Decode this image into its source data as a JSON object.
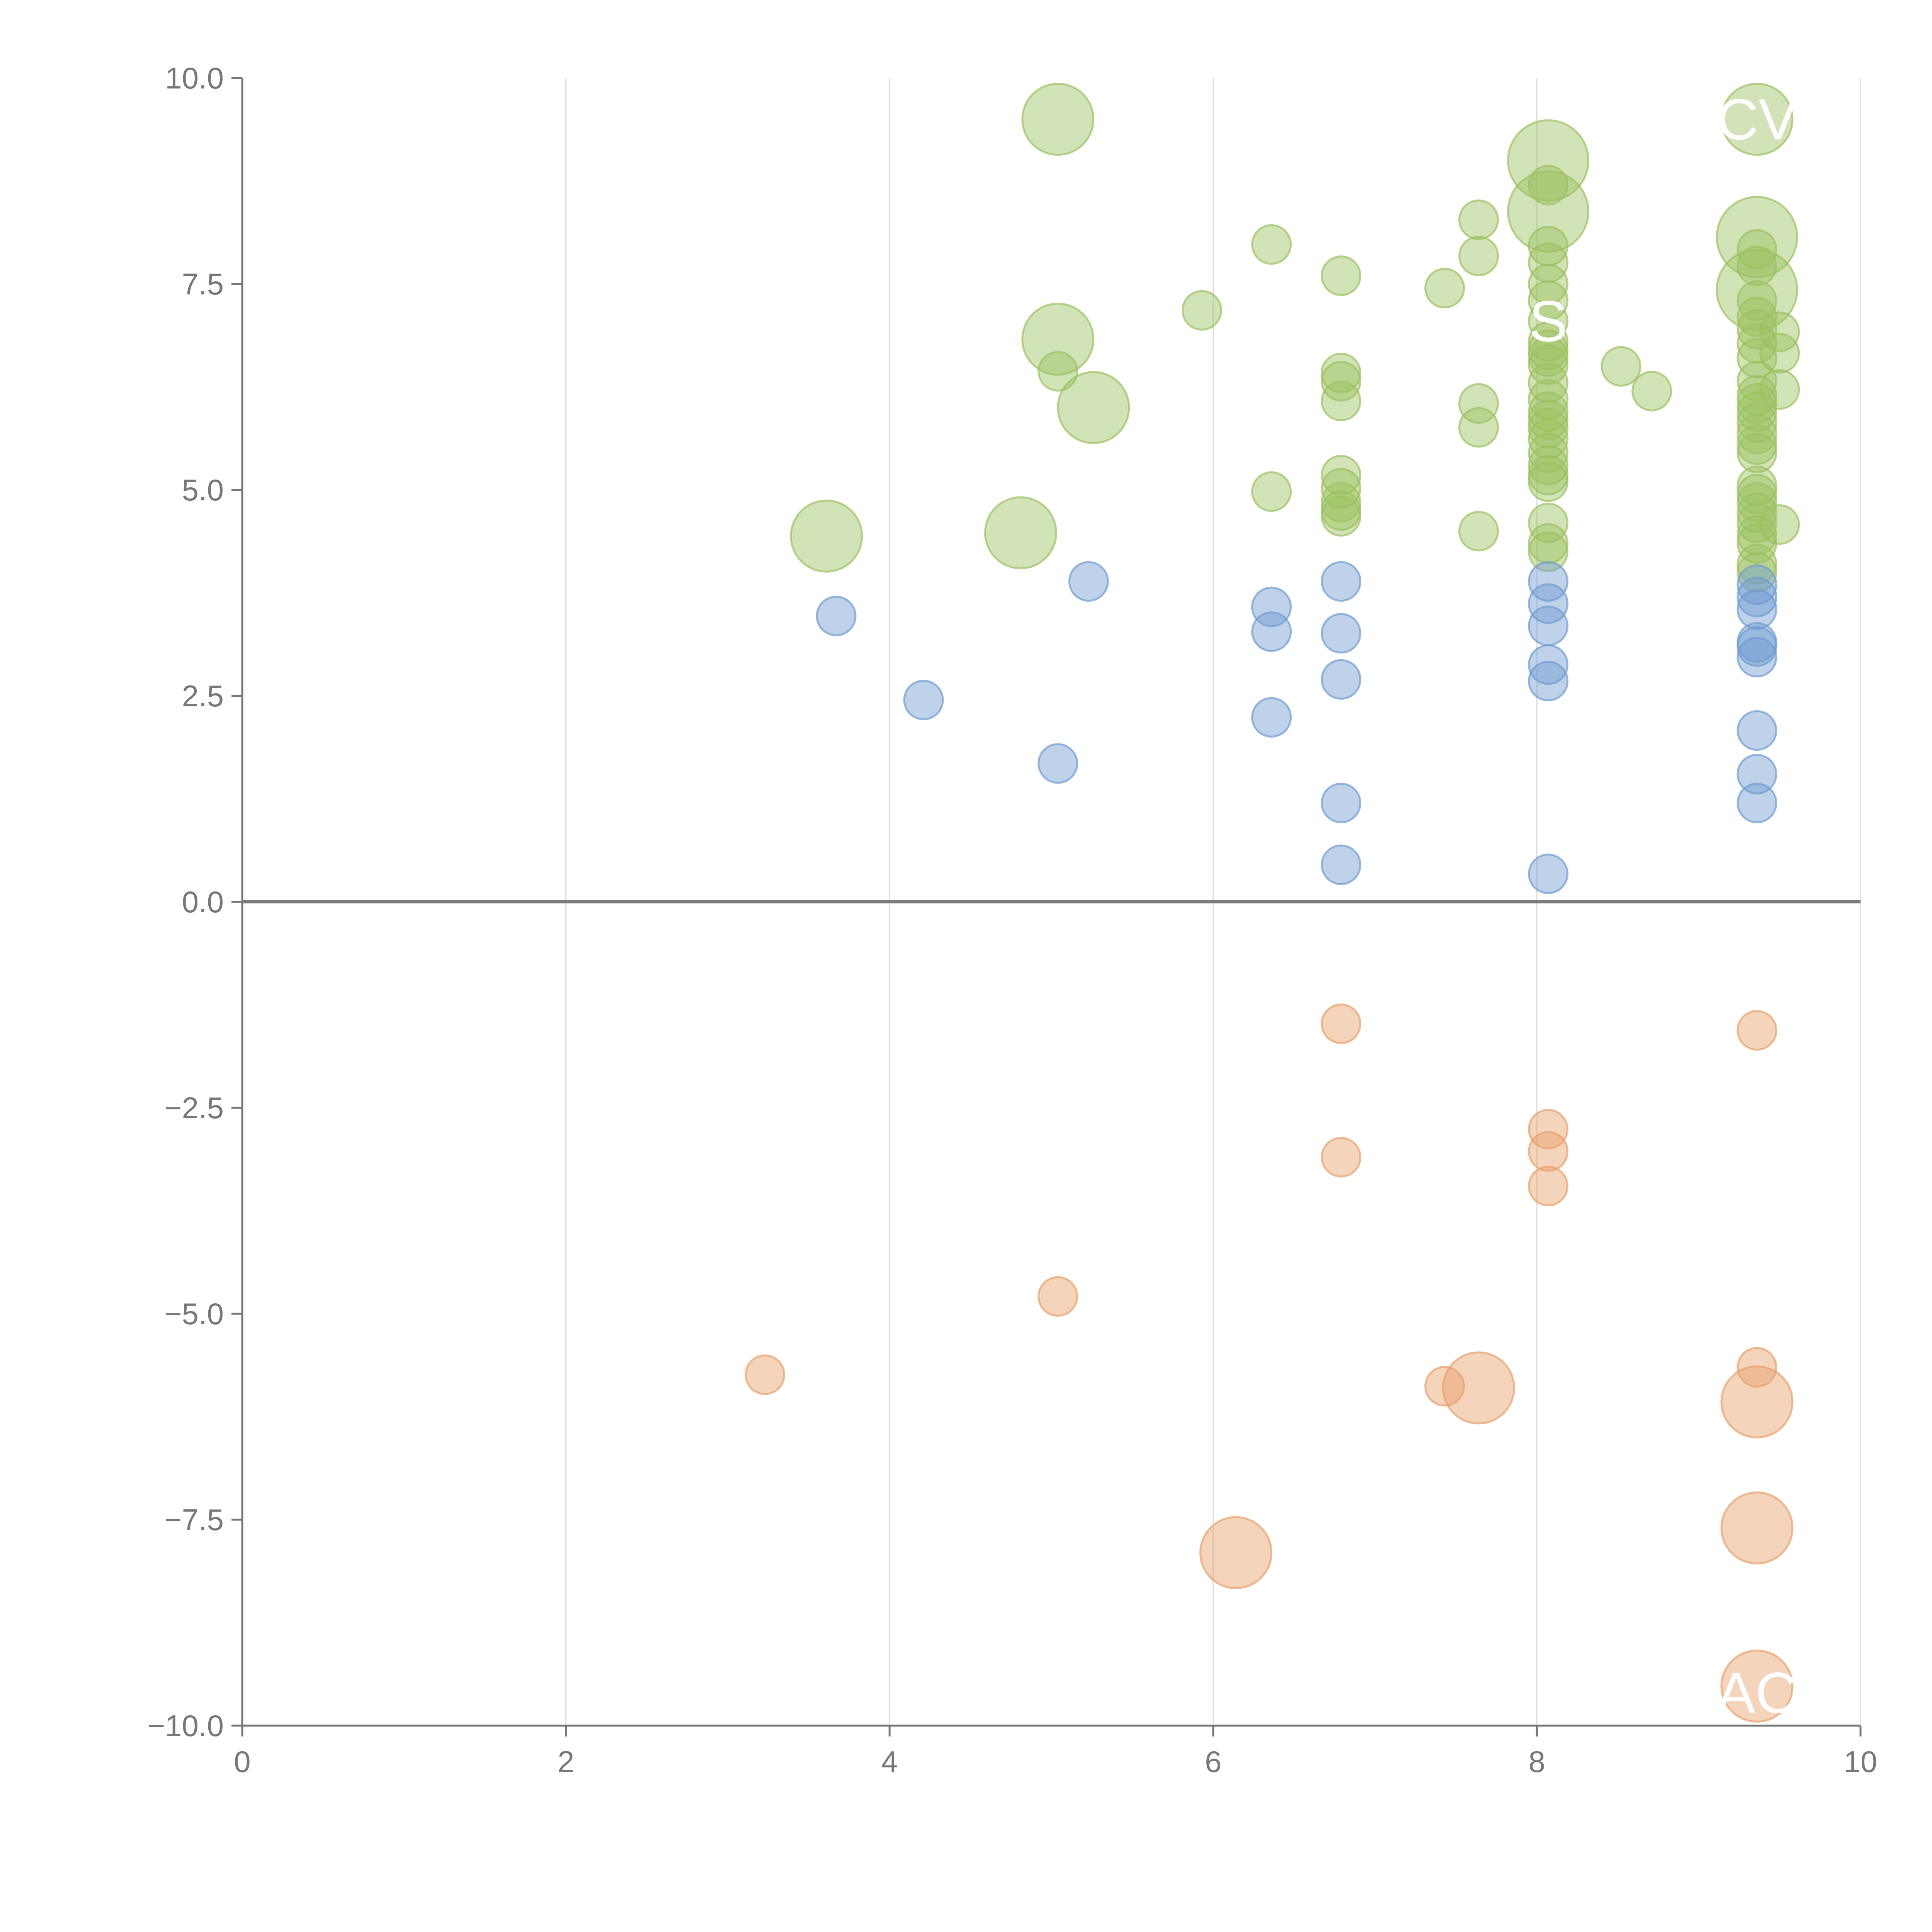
{
  "colors": {
    "positive": "#6f9bd1",
    "high": "#9bc05f",
    "negative": "#e8a06a",
    "axis": "#777777",
    "grid": "#dddddd",
    "zero_line": "#7a7a7a",
    "label": "#ffffff"
  },
  "chart_data": {
    "type": "scatter",
    "title": "",
    "xlabel": "",
    "ylabel": "",
    "xlim": [
      0,
      10
    ],
    "ylim": [
      -10,
      10
    ],
    "x_ticks": [
      "0",
      "2",
      "4",
      "6",
      "8",
      "10"
    ],
    "y_ticks": [
      "10.0",
      "7.5",
      "5.0",
      "2.5",
      "0.0",
      "−2.5",
      "−5.0",
      "−7.5",
      "−10.0"
    ],
    "x_tick_values": [
      0,
      2,
      4,
      6,
      8,
      10
    ],
    "y_tick_values": [
      10,
      7.5,
      5,
      2.5,
      0,
      -2.5,
      -5,
      -7.5,
      -10
    ],
    "grid": "vertical",
    "zero_line": true,
    "series": [
      {
        "color_key": "high",
        "points": [
          {
            "x": 5.04,
            "y": 9.5,
            "size": "large"
          },
          {
            "x": 9.36,
            "y": 9.5,
            "size": "large"
          },
          {
            "x": 8.07,
            "y": 9.0,
            "size": "xlarge"
          },
          {
            "x": 8.07,
            "y": 8.7,
            "size": "small"
          },
          {
            "x": 8.07,
            "y": 8.38,
            "size": "xlarge"
          },
          {
            "x": 7.64,
            "y": 8.28,
            "size": "small"
          },
          {
            "x": 9.36,
            "y": 8.07,
            "size": "xlarge"
          },
          {
            "x": 6.36,
            "y": 7.98,
            "size": "small"
          },
          {
            "x": 8.07,
            "y": 7.96,
            "size": "small"
          },
          {
            "x": 9.36,
            "y": 7.92,
            "size": "small"
          },
          {
            "x": 7.64,
            "y": 7.84,
            "size": "small"
          },
          {
            "x": 8.07,
            "y": 7.76,
            "size": "small"
          },
          {
            "x": 9.36,
            "y": 7.72,
            "size": "small"
          },
          {
            "x": 6.79,
            "y": 7.6,
            "size": "small"
          },
          {
            "x": 8.07,
            "y": 7.5,
            "size": "small"
          },
          {
            "x": 7.43,
            "y": 7.45,
            "size": "small"
          },
          {
            "x": 9.36,
            "y": 7.43,
            "size": "xlarge"
          },
          {
            "x": 8.07,
            "y": 7.3,
            "size": "small"
          },
          {
            "x": 9.36,
            "y": 7.3,
            "size": "small"
          },
          {
            "x": 5.93,
            "y": 7.18,
            "size": "small"
          },
          {
            "x": 9.36,
            "y": 7.1,
            "size": "small"
          },
          {
            "x": 8.07,
            "y": 7.05,
            "size": "small"
          },
          {
            "x": 9.36,
            "y": 6.95,
            "size": "small"
          },
          {
            "x": 9.5,
            "y": 6.92,
            "size": "small"
          },
          {
            "x": 5.04,
            "y": 6.83,
            "size": "large"
          },
          {
            "x": 8.07,
            "y": 6.8,
            "size": "small"
          },
          {
            "x": 9.36,
            "y": 6.78,
            "size": "small"
          },
          {
            "x": 8.07,
            "y": 6.7,
            "size": "small"
          },
          {
            "x": 9.5,
            "y": 6.66,
            "size": "small"
          },
          {
            "x": 8.07,
            "y": 6.62,
            "size": "small"
          },
          {
            "x": 9.36,
            "y": 6.6,
            "size": "small"
          },
          {
            "x": 8.07,
            "y": 6.52,
            "size": "small"
          },
          {
            "x": 8.52,
            "y": 6.5,
            "size": "small"
          },
          {
            "x": 6.79,
            "y": 6.42,
            "size": "small"
          },
          {
            "x": 5.04,
            "y": 6.44,
            "size": "small"
          },
          {
            "x": 9.36,
            "y": 6.32,
            "size": "small"
          },
          {
            "x": 6.79,
            "y": 6.32,
            "size": "small"
          },
          {
            "x": 8.07,
            "y": 6.3,
            "size": "small"
          },
          {
            "x": 9.5,
            "y": 6.22,
            "size": "small"
          },
          {
            "x": 8.71,
            "y": 6.2,
            "size": "small"
          },
          {
            "x": 9.36,
            "y": 6.15,
            "size": "small"
          },
          {
            "x": 8.07,
            "y": 6.1,
            "size": "small"
          },
          {
            "x": 6.79,
            "y": 6.08,
            "size": "small"
          },
          {
            "x": 7.64,
            "y": 6.05,
            "size": "small"
          },
          {
            "x": 9.36,
            "y": 6.05,
            "size": "small"
          },
          {
            "x": 5.26,
            "y": 6.0,
            "size": "large"
          },
          {
            "x": 8.07,
            "y": 5.95,
            "size": "small"
          },
          {
            "x": 9.36,
            "y": 5.95,
            "size": "small"
          },
          {
            "x": 8.07,
            "y": 5.85,
            "size": "small"
          },
          {
            "x": 9.36,
            "y": 5.82,
            "size": "small"
          },
          {
            "x": 8.07,
            "y": 5.75,
            "size": "small"
          },
          {
            "x": 7.64,
            "y": 5.76,
            "size": "small"
          },
          {
            "x": 9.36,
            "y": 5.68,
            "size": "small"
          },
          {
            "x": 8.07,
            "y": 5.62,
            "size": "small"
          },
          {
            "x": 9.36,
            "y": 5.55,
            "size": "small"
          },
          {
            "x": 9.36,
            "y": 5.45,
            "size": "small"
          },
          {
            "x": 8.07,
            "y": 5.45,
            "size": "small"
          },
          {
            "x": 8.07,
            "y": 5.3,
            "size": "small"
          },
          {
            "x": 6.79,
            "y": 5.18,
            "size": "small"
          },
          {
            "x": 8.07,
            "y": 5.18,
            "size": "small"
          },
          {
            "x": 8.07,
            "y": 5.1,
            "size": "small"
          },
          {
            "x": 9.36,
            "y": 5.05,
            "size": "small"
          },
          {
            "x": 6.79,
            "y": 5.02,
            "size": "small"
          },
          {
            "x": 6.36,
            "y": 4.98,
            "size": "small"
          },
          {
            "x": 9.36,
            "y": 4.95,
            "size": "small"
          },
          {
            "x": 9.36,
            "y": 4.85,
            "size": "small"
          },
          {
            "x": 6.79,
            "y": 4.85,
            "size": "small"
          },
          {
            "x": 6.79,
            "y": 4.75,
            "size": "small"
          },
          {
            "x": 9.36,
            "y": 4.72,
            "size": "small"
          },
          {
            "x": 6.79,
            "y": 4.68,
            "size": "small"
          },
          {
            "x": 8.07,
            "y": 4.6,
            "size": "small"
          },
          {
            "x": 9.36,
            "y": 4.6,
            "size": "small"
          },
          {
            "x": 9.5,
            "y": 4.58,
            "size": "small"
          },
          {
            "x": 7.64,
            "y": 4.5,
            "size": "small"
          },
          {
            "x": 4.81,
            "y": 4.48,
            "size": "large"
          },
          {
            "x": 3.61,
            "y": 4.44,
            "size": "large"
          },
          {
            "x": 9.36,
            "y": 4.45,
            "size": "small"
          },
          {
            "x": 8.07,
            "y": 4.35,
            "size": "small"
          },
          {
            "x": 9.36,
            "y": 4.35,
            "size": "small"
          },
          {
            "x": 8.07,
            "y": 4.25,
            "size": "small"
          },
          {
            "x": 9.36,
            "y": 4.1,
            "size": "small"
          },
          {
            "x": 9.36,
            "y": 4.0,
            "size": "small"
          }
        ]
      },
      {
        "color_key": "positive",
        "points": [
          {
            "x": 5.23,
            "y": 3.89,
            "size": "small"
          },
          {
            "x": 6.79,
            "y": 3.89,
            "size": "small"
          },
          {
            "x": 8.07,
            "y": 3.89,
            "size": "small"
          },
          {
            "x": 9.36,
            "y": 3.85,
            "size": "small"
          },
          {
            "x": 9.36,
            "y": 3.7,
            "size": "small"
          },
          {
            "x": 8.07,
            "y": 3.62,
            "size": "small"
          },
          {
            "x": 6.36,
            "y": 3.58,
            "size": "small"
          },
          {
            "x": 9.36,
            "y": 3.55,
            "size": "small"
          },
          {
            "x": 3.67,
            "y": 3.47,
            "size": "small"
          },
          {
            "x": 8.07,
            "y": 3.35,
            "size": "small"
          },
          {
            "x": 6.36,
            "y": 3.28,
            "size": "small"
          },
          {
            "x": 6.79,
            "y": 3.26,
            "size": "small"
          },
          {
            "x": 9.36,
            "y": 3.15,
            "size": "small"
          },
          {
            "x": 9.36,
            "y": 3.1,
            "size": "small"
          },
          {
            "x": 9.36,
            "y": 2.97,
            "size": "small"
          },
          {
            "x": 8.07,
            "y": 2.88,
            "size": "small"
          },
          {
            "x": 6.79,
            "y": 2.7,
            "size": "small"
          },
          {
            "x": 8.07,
            "y": 2.68,
            "size": "small"
          },
          {
            "x": 4.21,
            "y": 2.45,
            "size": "small"
          },
          {
            "x": 6.36,
            "y": 2.24,
            "size": "small"
          },
          {
            "x": 9.36,
            "y": 2.08,
            "size": "small"
          },
          {
            "x": 5.04,
            "y": 1.68,
            "size": "small"
          },
          {
            "x": 9.36,
            "y": 1.55,
            "size": "small"
          },
          {
            "x": 6.79,
            "y": 1.2,
            "size": "small"
          },
          {
            "x": 9.36,
            "y": 1.2,
            "size": "small"
          },
          {
            "x": 6.79,
            "y": 0.45,
            "size": "small"
          },
          {
            "x": 8.07,
            "y": 0.34,
            "size": "small"
          }
        ]
      },
      {
        "color_key": "negative",
        "points": [
          {
            "x": 6.79,
            "y": -1.48,
            "size": "small"
          },
          {
            "x": 9.36,
            "y": -1.56,
            "size": "small"
          },
          {
            "x": 8.07,
            "y": -2.76,
            "size": "small"
          },
          {
            "x": 8.07,
            "y": -3.03,
            "size": "small"
          },
          {
            "x": 6.79,
            "y": -3.1,
            "size": "small"
          },
          {
            "x": 8.07,
            "y": -3.45,
            "size": "small"
          },
          {
            "x": 5.04,
            "y": -4.79,
            "size": "small"
          },
          {
            "x": 9.36,
            "y": -5.65,
            "size": "small"
          },
          {
            "x": 3.23,
            "y": -5.74,
            "size": "small"
          },
          {
            "x": 7.43,
            "y": -5.88,
            "size": "small"
          },
          {
            "x": 7.64,
            "y": -5.9,
            "size": "large"
          },
          {
            "x": 9.36,
            "y": -6.07,
            "size": "large"
          },
          {
            "x": 9.36,
            "y": -7.6,
            "size": "large"
          },
          {
            "x": 6.14,
            "y": -7.9,
            "size": "large"
          },
          {
            "x": 9.36,
            "y": -9.52,
            "size": "large"
          }
        ]
      }
    ],
    "point_labels": [
      {
        "text": "CV",
        "x": 9.36,
        "y": 9.5
      },
      {
        "text": "S",
        "x": 8.07,
        "y": 7.05
      },
      {
        "text": "AC",
        "x": 9.36,
        "y": -9.6
      }
    ]
  }
}
